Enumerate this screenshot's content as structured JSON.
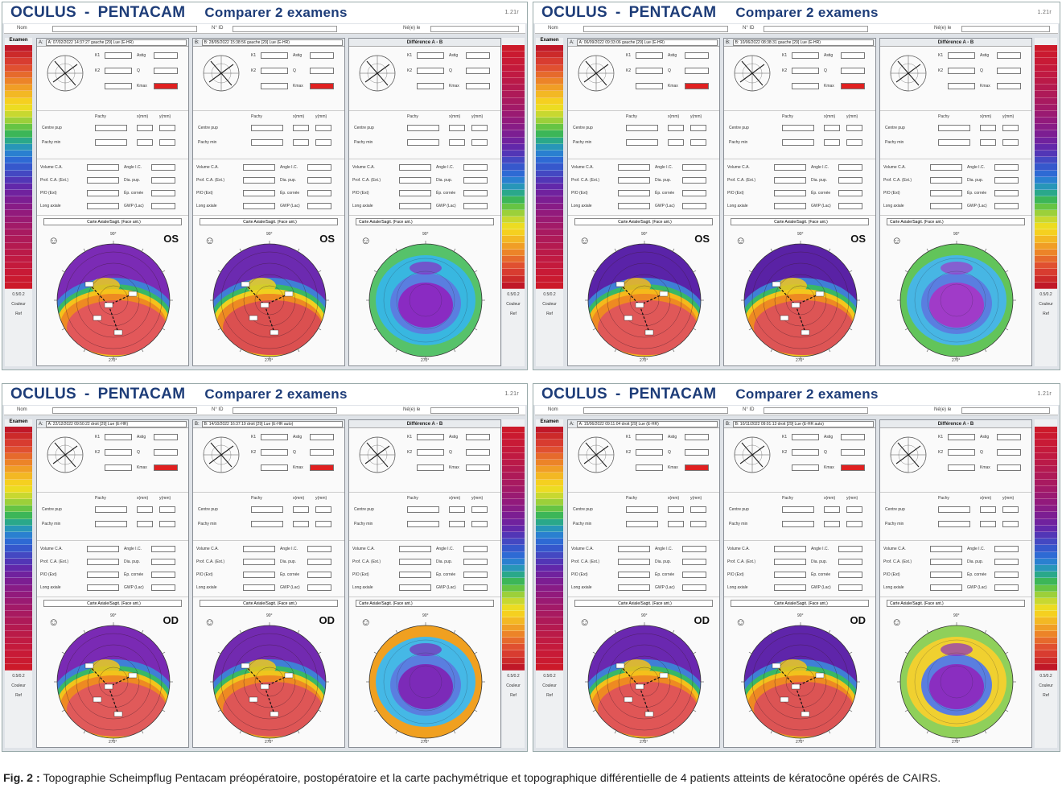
{
  "quadrants": [
    {
      "title": {
        "brand": "OCULUS",
        "dash": "-",
        "product": "PENTACAM",
        "subtitle": "Comparer 2 examens",
        "version": "1.21r"
      },
      "exam_label": "Examen",
      "panel_a": {
        "label": "A:",
        "exam": "A: 07/02/2022 14:37:27 gauche  [29] Lue (E-HR)"
      },
      "panel_b": {
        "label": "B:",
        "exam": "B: 28/05/2022 15:38:56 gauche  [29] Lue (E-HR)"
      },
      "diff_label": "Différence A - B",
      "eye": "OS",
      "map_mode": "Carte Axiale/Sagit. (Face ant.)",
      "colors": {
        "a_top": "#7b2bb5",
        "a_mid": "#f5c21b",
        "a_bottom": "#e2585a",
        "b_top": "#6c2ab0",
        "b_mid": "#f0d020",
        "b_bottom": "#db5050",
        "d_outer": "#56c26a",
        "d_mid": "#38b7e0",
        "d_center": "#8a2bc2"
      }
    },
    {
      "title": {
        "brand": "OCULUS",
        "dash": "-",
        "product": "PENTACAM",
        "subtitle": "Comparer 2 examens",
        "version": "1.21r"
      },
      "exam_label": "Examen",
      "panel_a": {
        "label": "A:",
        "exam": "A: 06/09/2022 09:33:06 gauche  [29] Lue (E-HR)"
      },
      "panel_b": {
        "label": "B:",
        "exam": "B: 10/06/2022 08:38:31 gauche  [29] Lue (E-HR)"
      },
      "diff_label": "Différence A - B",
      "eye": "OS",
      "map_mode": "Carte Axiale/Sagit. (Face ant.)",
      "colors": {
        "a_top": "#5a23a8",
        "a_mid": "#f5b91b",
        "a_bottom": "#e05858",
        "b_top": "#5a22a5",
        "b_mid": "#f3c71d",
        "b_bottom": "#dd5555",
        "d_outer": "#62c45a",
        "d_mid": "#47b6e4",
        "d_center": "#a03bc8"
      }
    },
    {
      "title": {
        "brand": "OCULUS",
        "dash": "-",
        "product": "PENTACAM",
        "subtitle": "Comparer 2 examens",
        "version": "1.21r"
      },
      "exam_label": "Examen",
      "panel_a": {
        "label": "A:",
        "exam": "A: 22/12/2022 09:50:22 droit  [29] Lue (E-HR)"
      },
      "panel_b": {
        "label": "B:",
        "exam": "B: 14/10/2022 16:37:19 droit  [29] Lue (E-HR auto)"
      },
      "diff_label": "Différence A - B",
      "eye": "OD",
      "map_mode": "Carte Axiale/Sagit. (Face ant.)",
      "colors": {
        "a_top": "#7a2ab4",
        "a_mid": "#f2c41b",
        "a_bottom": "#e05a5a",
        "b_top": "#722ab0",
        "b_mid": "#f0c51d",
        "b_bottom": "#de5656",
        "d_outer": "#f0a020",
        "d_mid": "#45b8e6",
        "d_center": "#7c2ab8"
      }
    },
    {
      "title": {
        "brand": "OCULUS",
        "dash": "-",
        "product": "PENTACAM",
        "subtitle": "Comparer 2 examens",
        "version": "1.21r"
      },
      "exam_label": "Examen",
      "panel_a": {
        "label": "A:",
        "exam": "A: 15/06/2022 09:11:04 droit  [29] Lue (E-HR)"
      },
      "panel_b": {
        "label": "B:",
        "exam": "B: 10/11/2022 09:01:13 droit  [29] Lue (E-HR auto)"
      },
      "diff_label": "Différence A - B",
      "eye": "OD",
      "map_mode": "Carte Axiale/Sagit. (Face ant.)",
      "colors": {
        "a_top": "#6a28b0",
        "a_mid": "#f4c01b",
        "a_bottom": "#e05656",
        "b_top": "#5f25aa",
        "b_mid": "#f2c21c",
        "b_bottom": "#dc5454",
        "d_outer": "#8fd05a",
        "d_mid": "#f0d030",
        "d_center": "#8a2ec0"
      }
    }
  ],
  "ui": {
    "header_name": "Nom",
    "header_id": "N° ID",
    "header_dob": "Né(e) le",
    "k1": "K1",
    "k2": "K2",
    "astig": "Astig",
    "q": "Q",
    "kmax": "Kmax",
    "pachy": "Pachy",
    "x_mm": "x(mm)",
    "y_mm": "y(mm)",
    "centre_pup": "Centre pup",
    "pachy_min": "Pachy min",
    "volume_ca": "Volume C.A.",
    "angle_ic": "Angle I.C.",
    "prof_ca": "Prof. C.A. (Ext.)",
    "dia_pup": "Dia. pup.",
    "pio": "PIO (Ext)",
    "ep_cornee": "Ép. cornée",
    "long_axiale": "Long axiale",
    "gwp": "GWP (Lac)",
    "scale_foot_1": "0.5/0.2",
    "scale_foot_2": "Couleur",
    "scale_foot_3": "Ref",
    "deg_top": "90°",
    "deg_bottom": "270°"
  },
  "caption": {
    "label": "Fig. 2 :",
    "text": "Topographie Scheimpflug Pentacam préopératoire, postopératoire et la carte pachymétrique et topographique différentielle de 4 patients atteints de kératocône opérés de CAIRS."
  }
}
